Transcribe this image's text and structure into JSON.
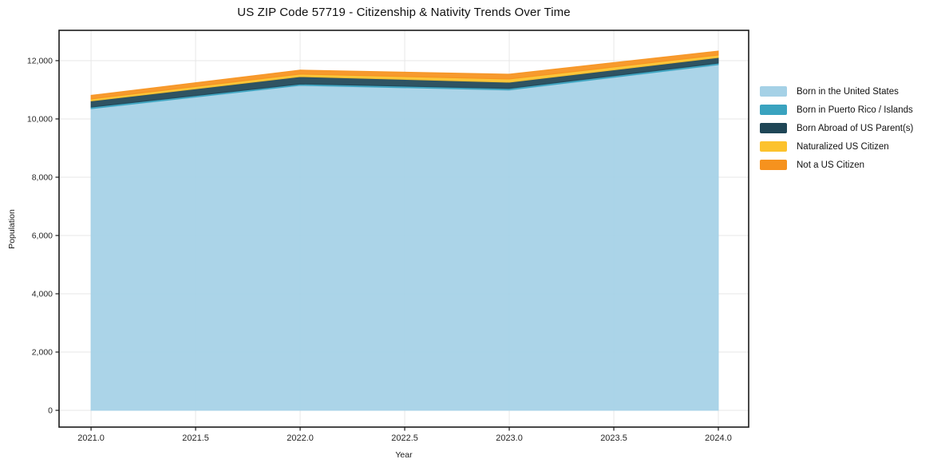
{
  "chart_data": {
    "type": "area",
    "stacked": true,
    "title": "US ZIP Code 57719 - Citizenship & Nativity Trends Over Time",
    "xlabel": "Year",
    "ylabel": "Population",
    "x": [
      2021,
      2022,
      2023,
      2024
    ],
    "series": [
      {
        "name": "Born in the United States",
        "color": "#a5d1e6",
        "values": [
          10350,
          11150,
          10990,
          11860
        ]
      },
      {
        "name": "Born in Puerto Rico / Islands",
        "color": "#3aa3bf",
        "values": [
          55,
          50,
          55,
          55
        ]
      },
      {
        "name": "Born Abroad of US Parent(s)",
        "color": "#1f4656",
        "values": [
          210,
          250,
          215,
          190
        ]
      },
      {
        "name": "Naturalized US Citizen",
        "color": "#fcc22d",
        "values": [
          70,
          85,
          110,
          85
        ]
      },
      {
        "name": "Not a US Citizen",
        "color": "#f6921e",
        "values": [
          125,
          140,
          165,
          140
        ]
      }
    ],
    "totals_by_year": [
      10810,
      11675,
      11535,
      12330
    ],
    "x_ticks": {
      "values": [
        2021.0,
        2021.5,
        2022.0,
        2022.5,
        2023.0,
        2023.5,
        2024.0
      ],
      "labels": [
        "2021.0",
        "2021.5",
        "2022.0",
        "2022.5",
        "2023.0",
        "2023.5",
        "2024.0"
      ]
    },
    "y_ticks": {
      "values": [
        0,
        2000,
        4000,
        6000,
        8000,
        10000,
        12000
      ],
      "labels": [
        "0",
        "2,000",
        "4,000",
        "6,000",
        "8,000",
        "10,000",
        "12,000"
      ]
    },
    "xlim": [
      2020.847,
      2024.145
    ],
    "ylim": [
      -575,
      13040
    ],
    "grid": true,
    "legend_position": "right-outside",
    "colors": {
      "spine": "#1a1a1a",
      "grid": "#e7e7e7",
      "tick_label": "#262626",
      "background": "#ffffff"
    }
  }
}
